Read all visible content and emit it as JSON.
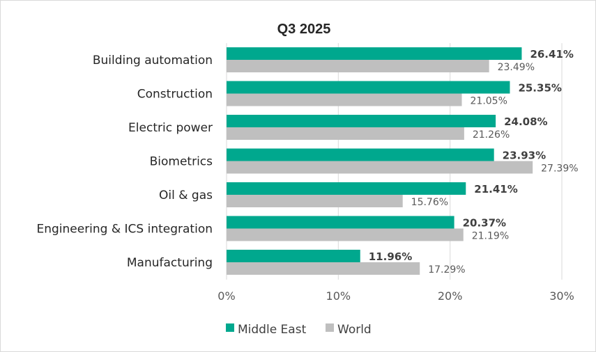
{
  "chart_data": {
    "type": "bar",
    "orientation": "horizontal",
    "title": "Q3 2025",
    "categories": [
      "Building automation",
      "Construction",
      "Electric power",
      "Biometrics",
      "Oil & gas",
      "Engineering & ICS integration",
      "Manufacturing"
    ],
    "series": [
      {
        "name": "Middle East",
        "values": [
          26.41,
          25.35,
          24.08,
          23.93,
          21.41,
          20.37,
          11.96
        ],
        "labels": [
          "26.41%",
          "25.35%",
          "24.08%",
          "23.93%",
          "21.41%",
          "20.37%",
          "11.96%"
        ],
        "color": "#00A88E"
      },
      {
        "name": "World",
        "values": [
          23.49,
          21.05,
          21.26,
          27.39,
          15.76,
          21.19,
          17.29
        ],
        "labels": [
          "23.49%",
          "21.05%",
          "21.26%",
          "27.39%",
          "15.76%",
          "21.19%",
          "17.29%"
        ],
        "color": "#BFBFBF"
      }
    ],
    "xlim": [
      0,
      30
    ],
    "xticks": [
      0,
      10,
      20,
      30
    ],
    "xtick_labels": [
      "0%",
      "10%",
      "20%",
      "30%"
    ],
    "grid": true,
    "legend_position": "bottom"
  }
}
